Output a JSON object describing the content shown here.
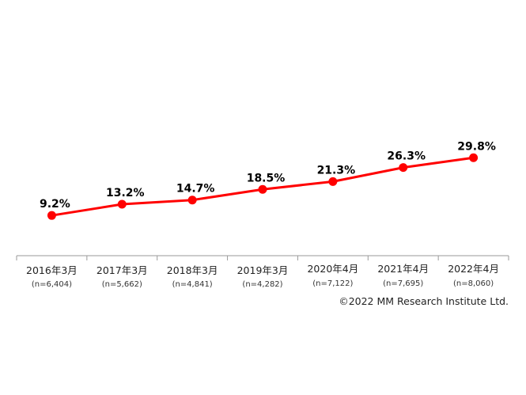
{
  "chart_data": {
    "type": "line",
    "title": "",
    "xlabel": "",
    "ylabel": "",
    "categories": [
      "2016年3月",
      "2017年3月",
      "2018年3月",
      "2019年3月",
      "2020年4月",
      "2021年4月",
      "2022年4月"
    ],
    "sample_sizes": [
      "(n=6,404)",
      "(n=5,662)",
      "(n=4,841)",
      "(n=4,282)",
      "(n=7,122)",
      "(n=7,695)",
      "(n=8,060)"
    ],
    "series": [
      {
        "values": [
          9.2,
          13.2,
          14.7,
          18.5,
          21.3,
          26.3,
          29.8
        ],
        "labels": [
          "9.2%",
          "13.2%",
          "14.7%",
          "18.5%",
          "21.3%",
          "26.3%",
          "29.8%"
        ],
        "color": "#ff0000"
      }
    ],
    "grid": false,
    "legend": "none"
  },
  "credit": "©2022 MM Research Institute Ltd."
}
